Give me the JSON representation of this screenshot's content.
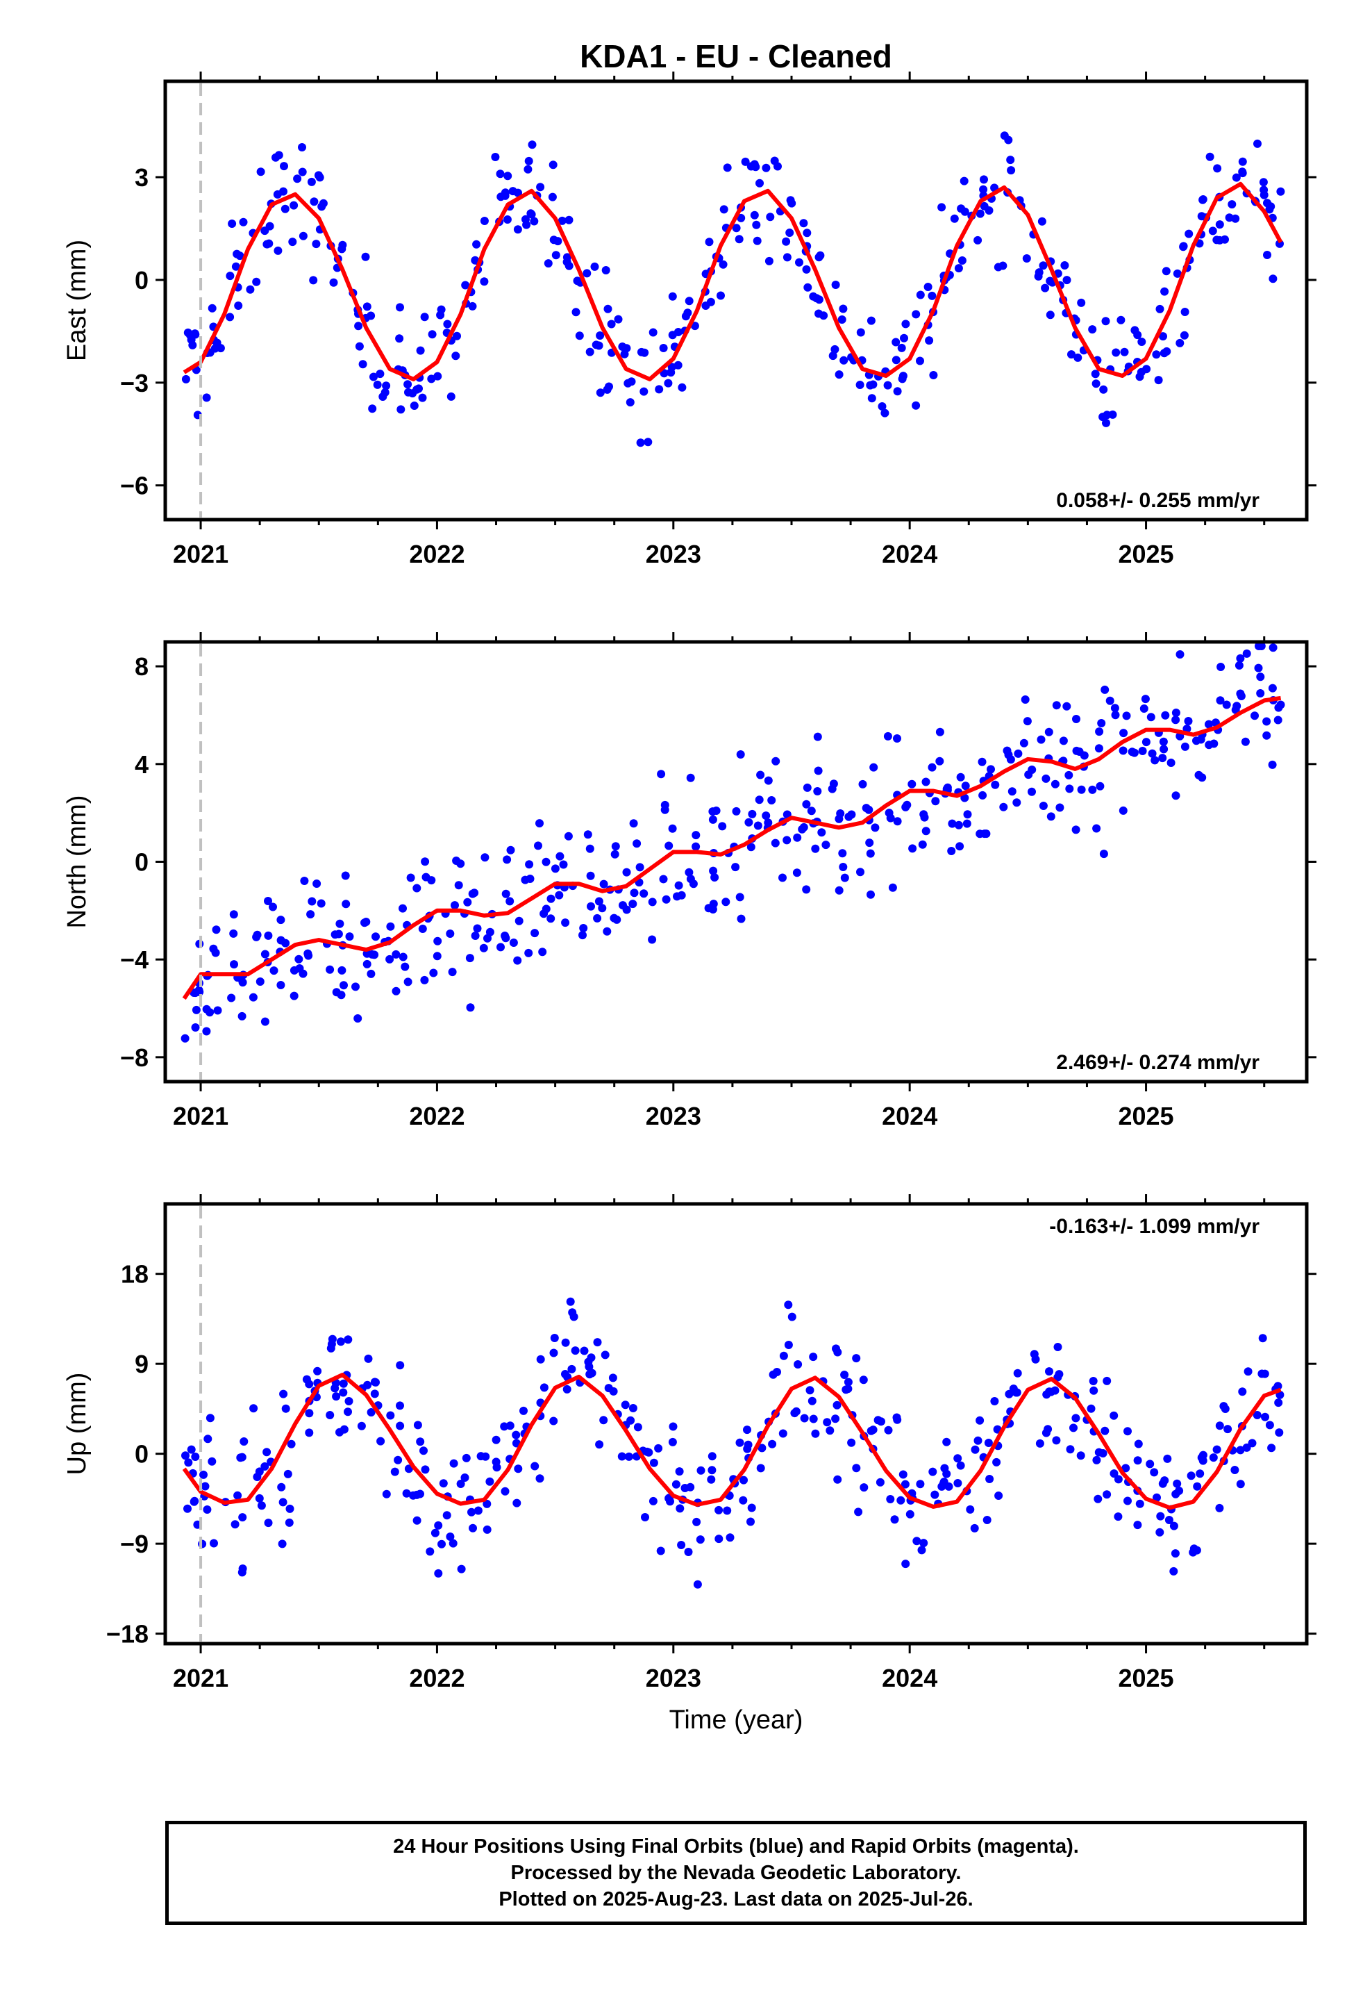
{
  "title": "KDA1  - EU - Cleaned",
  "colors": {
    "points": "#0000ff",
    "fit": "#ff0000",
    "epoch_line": "#c0c0c0",
    "frame": "#000000"
  },
  "caption": {
    "line1": "24 Hour Positions Using Final Orbits (blue) and Rapid Orbits (magenta).",
    "line2": "Processed by the Nevada Geodetic Laboratory.",
    "line3": "Plotted on 2025-Aug-23. Last data on 2025-Jul-26."
  },
  "chart_data": [
    {
      "type": "scatter",
      "ylabel": "East (mm)",
      "xlim": [
        2020.85,
        2025.68
      ],
      "ylim": [
        -7.0,
        5.8
      ],
      "yticks": [
        "-6",
        "-3",
        "0",
        "3"
      ],
      "xticks": [
        "2021",
        "2022",
        "2023",
        "2024",
        "2025"
      ],
      "rate_label": "0.058+/- 0.255 mm/yr",
      "rate_position": "bottom-right",
      "series": [
        {
          "values_x": [
            2020.93,
            2021.0,
            2021.1,
            2021.2,
            2021.3,
            2021.4,
            2021.5,
            2021.6,
            2021.7,
            2021.8,
            2021.9,
            2022.0,
            2022.1,
            2022.2,
            2022.3,
            2022.4,
            2022.5,
            2022.6,
            2022.7,
            2022.8,
            2022.9,
            2023.0,
            2023.1,
            2023.2,
            2023.3,
            2023.4,
            2023.5,
            2023.6,
            2023.7,
            2023.8,
            2023.9,
            2024.0,
            2024.1,
            2024.2,
            2024.3,
            2024.4,
            2024.5,
            2024.6,
            2024.7,
            2024.8,
            2024.9,
            2025.0,
            2025.1,
            2025.2,
            2025.3,
            2025.4,
            2025.5,
            2025.57
          ],
          "values_y": [
            -2.7,
            -2.4,
            -1.0,
            0.9,
            2.2,
            2.5,
            1.8,
            0.3,
            -1.4,
            -2.6,
            -2.9,
            -2.4,
            -1.0,
            0.9,
            2.2,
            2.6,
            1.8,
            0.3,
            -1.4,
            -2.6,
            -2.9,
            -2.3,
            -0.9,
            1.0,
            2.3,
            2.6,
            1.8,
            0.3,
            -1.4,
            -2.6,
            -2.8,
            -2.3,
            -0.9,
            1.0,
            2.3,
            2.7,
            1.9,
            0.3,
            -1.4,
            -2.6,
            -2.8,
            -2.3,
            -0.9,
            1.0,
            2.4,
            2.8,
            2.0,
            1.1
          ]
        }
      ]
    },
    {
      "type": "scatter",
      "ylabel": "North (mm)",
      "xlim": [
        2020.85,
        2025.68
      ],
      "ylim": [
        -9.0,
        9.0
      ],
      "yticks": [
        "-8",
        "-4",
        "0",
        "4",
        "8"
      ],
      "xticks": [
        "2021",
        "2022",
        "2023",
        "2024",
        "2025"
      ],
      "rate_label": "2.469+/- 0.274 mm/yr",
      "rate_position": "bottom-right",
      "series": [
        {
          "values_x": [
            2020.93,
            2021.0,
            2021.1,
            2021.2,
            2021.3,
            2021.4,
            2021.5,
            2021.6,
            2021.7,
            2021.8,
            2021.9,
            2022.0,
            2022.1,
            2022.2,
            2022.3,
            2022.4,
            2022.5,
            2022.6,
            2022.7,
            2022.8,
            2022.9,
            2023.0,
            2023.1,
            2023.2,
            2023.3,
            2023.4,
            2023.5,
            2023.6,
            2023.7,
            2023.8,
            2023.9,
            2024.0,
            2024.1,
            2024.2,
            2024.3,
            2024.4,
            2024.5,
            2024.6,
            2024.7,
            2024.8,
            2024.9,
            2025.0,
            2025.1,
            2025.2,
            2025.3,
            2025.4,
            2025.5,
            2025.57
          ],
          "values_y": [
            -5.6,
            -4.6,
            -4.6,
            -4.6,
            -4.0,
            -3.4,
            -3.2,
            -3.4,
            -3.6,
            -3.3,
            -2.6,
            -2.0,
            -2.0,
            -2.2,
            -2.1,
            -1.5,
            -0.9,
            -0.9,
            -1.2,
            -1.0,
            -0.3,
            0.4,
            0.4,
            0.3,
            0.7,
            1.3,
            1.8,
            1.6,
            1.4,
            1.6,
            2.3,
            2.9,
            2.9,
            2.7,
            3.1,
            3.7,
            4.2,
            4.1,
            3.8,
            4.2,
            4.9,
            5.4,
            5.4,
            5.2,
            5.5,
            6.1,
            6.6,
            6.7
          ]
        }
      ]
    },
    {
      "type": "scatter",
      "ylabel": "Up (mm)",
      "xlabel": "Time (year)",
      "xlim": [
        2020.85,
        2025.68
      ],
      "ylim": [
        -19.0,
        25.0
      ],
      "yticks": [
        "-18",
        "-9",
        "0",
        "9",
        "18"
      ],
      "xticks": [
        "2021",
        "2022",
        "2023",
        "2024",
        "2025"
      ],
      "rate_label": "-0.163+/- 1.099 mm/yr",
      "rate_position": "top-right",
      "series": [
        {
          "values_x": [
            2020.93,
            2021.0,
            2021.1,
            2021.2,
            2021.3,
            2021.4,
            2021.5,
            2021.6,
            2021.7,
            2021.8,
            2021.9,
            2022.0,
            2022.1,
            2022.2,
            2022.3,
            2022.4,
            2022.5,
            2022.6,
            2022.7,
            2022.8,
            2022.9,
            2023.0,
            2023.1,
            2023.2,
            2023.3,
            2023.4,
            2023.5,
            2023.6,
            2023.7,
            2023.8,
            2023.9,
            2024.0,
            2024.1,
            2024.2,
            2024.3,
            2024.4,
            2024.5,
            2024.6,
            2024.7,
            2024.8,
            2024.9,
            2025.0,
            2025.1,
            2025.2,
            2025.3,
            2025.4,
            2025.5,
            2025.57
          ],
          "values_y": [
            -1.5,
            -3.8,
            -4.9,
            -4.6,
            -1.5,
            3.0,
            6.8,
            7.9,
            5.9,
            2.4,
            -1.3,
            -4.0,
            -5.0,
            -4.6,
            -1.6,
            2.9,
            6.6,
            7.7,
            5.8,
            2.3,
            -1.5,
            -4.2,
            -5.1,
            -4.6,
            -1.6,
            2.8,
            6.5,
            7.6,
            5.7,
            2.1,
            -1.7,
            -4.4,
            -5.3,
            -4.8,
            -1.7,
            2.7,
            6.4,
            7.5,
            5.6,
            2.0,
            -1.9,
            -4.5,
            -5.4,
            -4.8,
            -1.8,
            2.5,
            5.8,
            6.4
          ]
        }
      ]
    }
  ]
}
